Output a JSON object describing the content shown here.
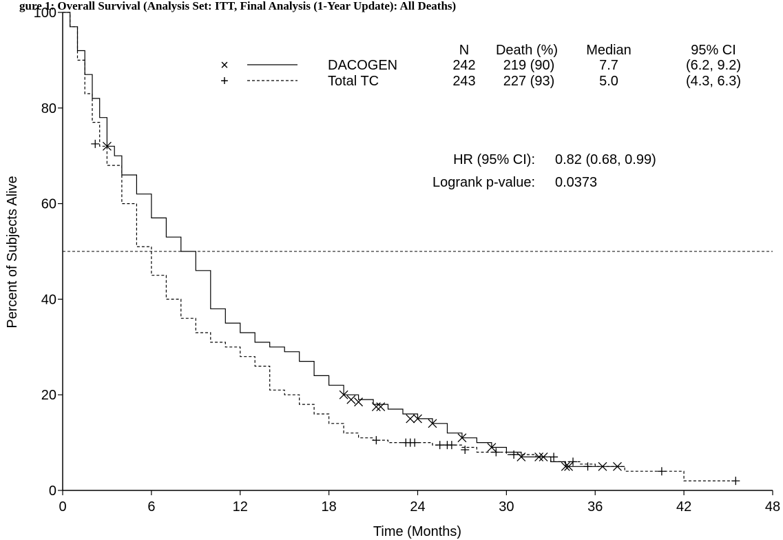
{
  "chart_data": {
    "type": "line",
    "title": "gure 1: Overall Survival (Analysis Set: ITT, Final Analysis (1-Year Update): All Deaths)",
    "xlabel": "Time (Months)",
    "ylabel": "Percent of Subjects Alive",
    "xlim": [
      0,
      48
    ],
    "ylim": [
      0,
      100
    ],
    "xticks": [
      "0",
      "6",
      "12",
      "18",
      "24",
      "30",
      "36",
      "42",
      "48"
    ],
    "yticks": [
      "0",
      "20",
      "40",
      "60",
      "80",
      "100"
    ],
    "reference_line": {
      "y": 50,
      "style": "dashed"
    },
    "legend_table": {
      "headers": [
        "N",
        "Death (%)",
        "Median",
        "95% CI"
      ],
      "rows": [
        {
          "marker": "×",
          "name": "DACOGEN",
          "n": "242",
          "deaths": "219 (90)",
          "median": "7.7",
          "ci": "(6.2, 9.2)"
        },
        {
          "marker": "+",
          "name": "Total TC",
          "n": "243",
          "deaths": "227 (93)",
          "median": "5.0",
          "ci": "(4.3, 6.3)"
        }
      ]
    },
    "stats": [
      {
        "label": "HR (95% CI):",
        "value": "0.82 (0.68, 0.99)"
      },
      {
        "label": "Logrank p-value:",
        "value": "0.0373"
      }
    ],
    "series": [
      {
        "name": "DACOGEN",
        "line": "solid",
        "censor_marker": "x",
        "points": [
          [
            0,
            100
          ],
          [
            0.5,
            97
          ],
          [
            1,
            92
          ],
          [
            1.5,
            87
          ],
          [
            2,
            82
          ],
          [
            2.5,
            78
          ],
          [
            3,
            72
          ],
          [
            3.5,
            70
          ],
          [
            4,
            66
          ],
          [
            5,
            62
          ],
          [
            6,
            57
          ],
          [
            7,
            53
          ],
          [
            8,
            50
          ],
          [
            9,
            46
          ],
          [
            10,
            38
          ],
          [
            11,
            35
          ],
          [
            12,
            33
          ],
          [
            13,
            31
          ],
          [
            14,
            30
          ],
          [
            15,
            29
          ],
          [
            16,
            27
          ],
          [
            17,
            24
          ],
          [
            18,
            22
          ],
          [
            19,
            20
          ],
          [
            20,
            19
          ],
          [
            21,
            18
          ],
          [
            22,
            17
          ],
          [
            23,
            16
          ],
          [
            24,
            15
          ],
          [
            25,
            14
          ],
          [
            26,
            12
          ],
          [
            27,
            11
          ],
          [
            28,
            10
          ],
          [
            29,
            9
          ],
          [
            30,
            8
          ],
          [
            31,
            7
          ],
          [
            32,
            7
          ],
          [
            33,
            6
          ],
          [
            34,
            5
          ],
          [
            35,
            5
          ],
          [
            36,
            5
          ],
          [
            37,
            5
          ],
          [
            38,
            5
          ]
        ],
        "censored": [
          [
            3,
            72
          ],
          [
            19,
            20
          ],
          [
            19.5,
            19
          ],
          [
            20,
            18.5
          ],
          [
            21.2,
            17.5
          ],
          [
            21.5,
            17.5
          ],
          [
            23.5,
            15
          ],
          [
            24,
            15
          ],
          [
            25,
            14
          ],
          [
            27,
            11
          ],
          [
            29,
            9
          ],
          [
            31,
            7
          ],
          [
            32.2,
            7
          ],
          [
            32.5,
            7
          ],
          [
            34,
            5
          ],
          [
            34.2,
            5
          ],
          [
            36.5,
            5
          ],
          [
            37.5,
            5
          ]
        ]
      },
      {
        "name": "Total TC",
        "line": "dashed",
        "censor_marker": "+",
        "points": [
          [
            0,
            100
          ],
          [
            0.5,
            97
          ],
          [
            1,
            90
          ],
          [
            1.5,
            83
          ],
          [
            2,
            77
          ],
          [
            2.5,
            72
          ],
          [
            3,
            68
          ],
          [
            4,
            60
          ],
          [
            5,
            51
          ],
          [
            6,
            45
          ],
          [
            7,
            40
          ],
          [
            8,
            36
          ],
          [
            9,
            33
          ],
          [
            10,
            31
          ],
          [
            11,
            30
          ],
          [
            12,
            28
          ],
          [
            13,
            26
          ],
          [
            14,
            21
          ],
          [
            15,
            20
          ],
          [
            16,
            18
          ],
          [
            17,
            16
          ],
          [
            18,
            14
          ],
          [
            19,
            12
          ],
          [
            20,
            11
          ],
          [
            21,
            10.5
          ],
          [
            22,
            10
          ],
          [
            24,
            10
          ],
          [
            25,
            9.5
          ],
          [
            26,
            9.5
          ],
          [
            27,
            9
          ],
          [
            28,
            8
          ],
          [
            30,
            7.5
          ],
          [
            32,
            7
          ],
          [
            33,
            6
          ],
          [
            34,
            6
          ],
          [
            35,
            5.5
          ],
          [
            36,
            5
          ],
          [
            38,
            4
          ],
          [
            40,
            4
          ],
          [
            42,
            2
          ],
          [
            45.5,
            2
          ]
        ],
        "censored": [
          [
            2.2,
            72.5
          ],
          [
            21.2,
            10.5
          ],
          [
            23.2,
            10
          ],
          [
            23.5,
            10
          ],
          [
            23.8,
            10
          ],
          [
            25.5,
            9.5
          ],
          [
            26,
            9.5
          ],
          [
            26.3,
            9.5
          ],
          [
            27.2,
            8.5
          ],
          [
            29.3,
            8
          ],
          [
            30.5,
            7.5
          ],
          [
            33.2,
            7
          ],
          [
            34.5,
            6
          ],
          [
            35.5,
            5
          ],
          [
            40.5,
            4
          ],
          [
            45.5,
            2
          ]
        ]
      }
    ]
  }
}
